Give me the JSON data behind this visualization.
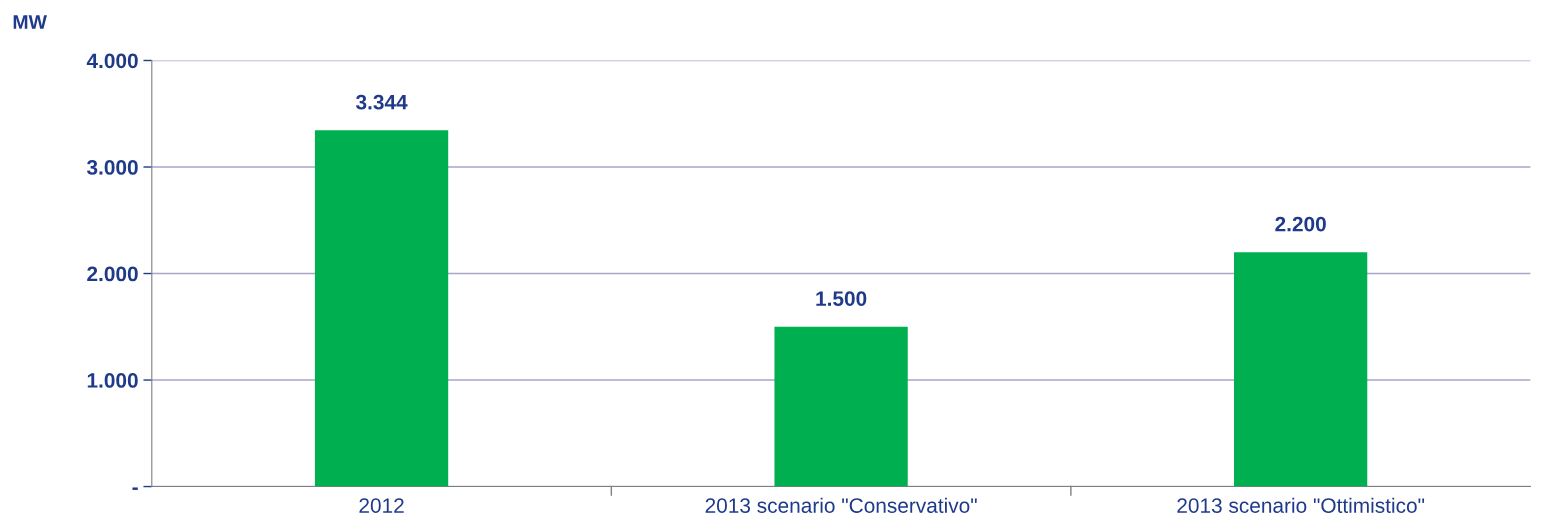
{
  "chart_data": {
    "type": "bar",
    "ylabel": "MW",
    "categories": [
      "2012",
      "2013 scenario \"Conservativo\"",
      "2013 scenario \"Ottimistico\""
    ],
    "values": [
      3344,
      1500,
      2200
    ],
    "value_labels": [
      "3.344",
      "1.500",
      "2.200"
    ],
    "color": "#00b050",
    "ylim": [
      0,
      4000
    ],
    "yticks": [
      {
        "value": 0,
        "label": "-"
      },
      {
        "value": 1000,
        "label": "1.000"
      },
      {
        "value": 2000,
        "label": "2.000"
      },
      {
        "value": 3000,
        "label": "3.000"
      },
      {
        "value": 4000,
        "label": "4.000"
      }
    ],
    "grid": "y",
    "legend": false
  }
}
